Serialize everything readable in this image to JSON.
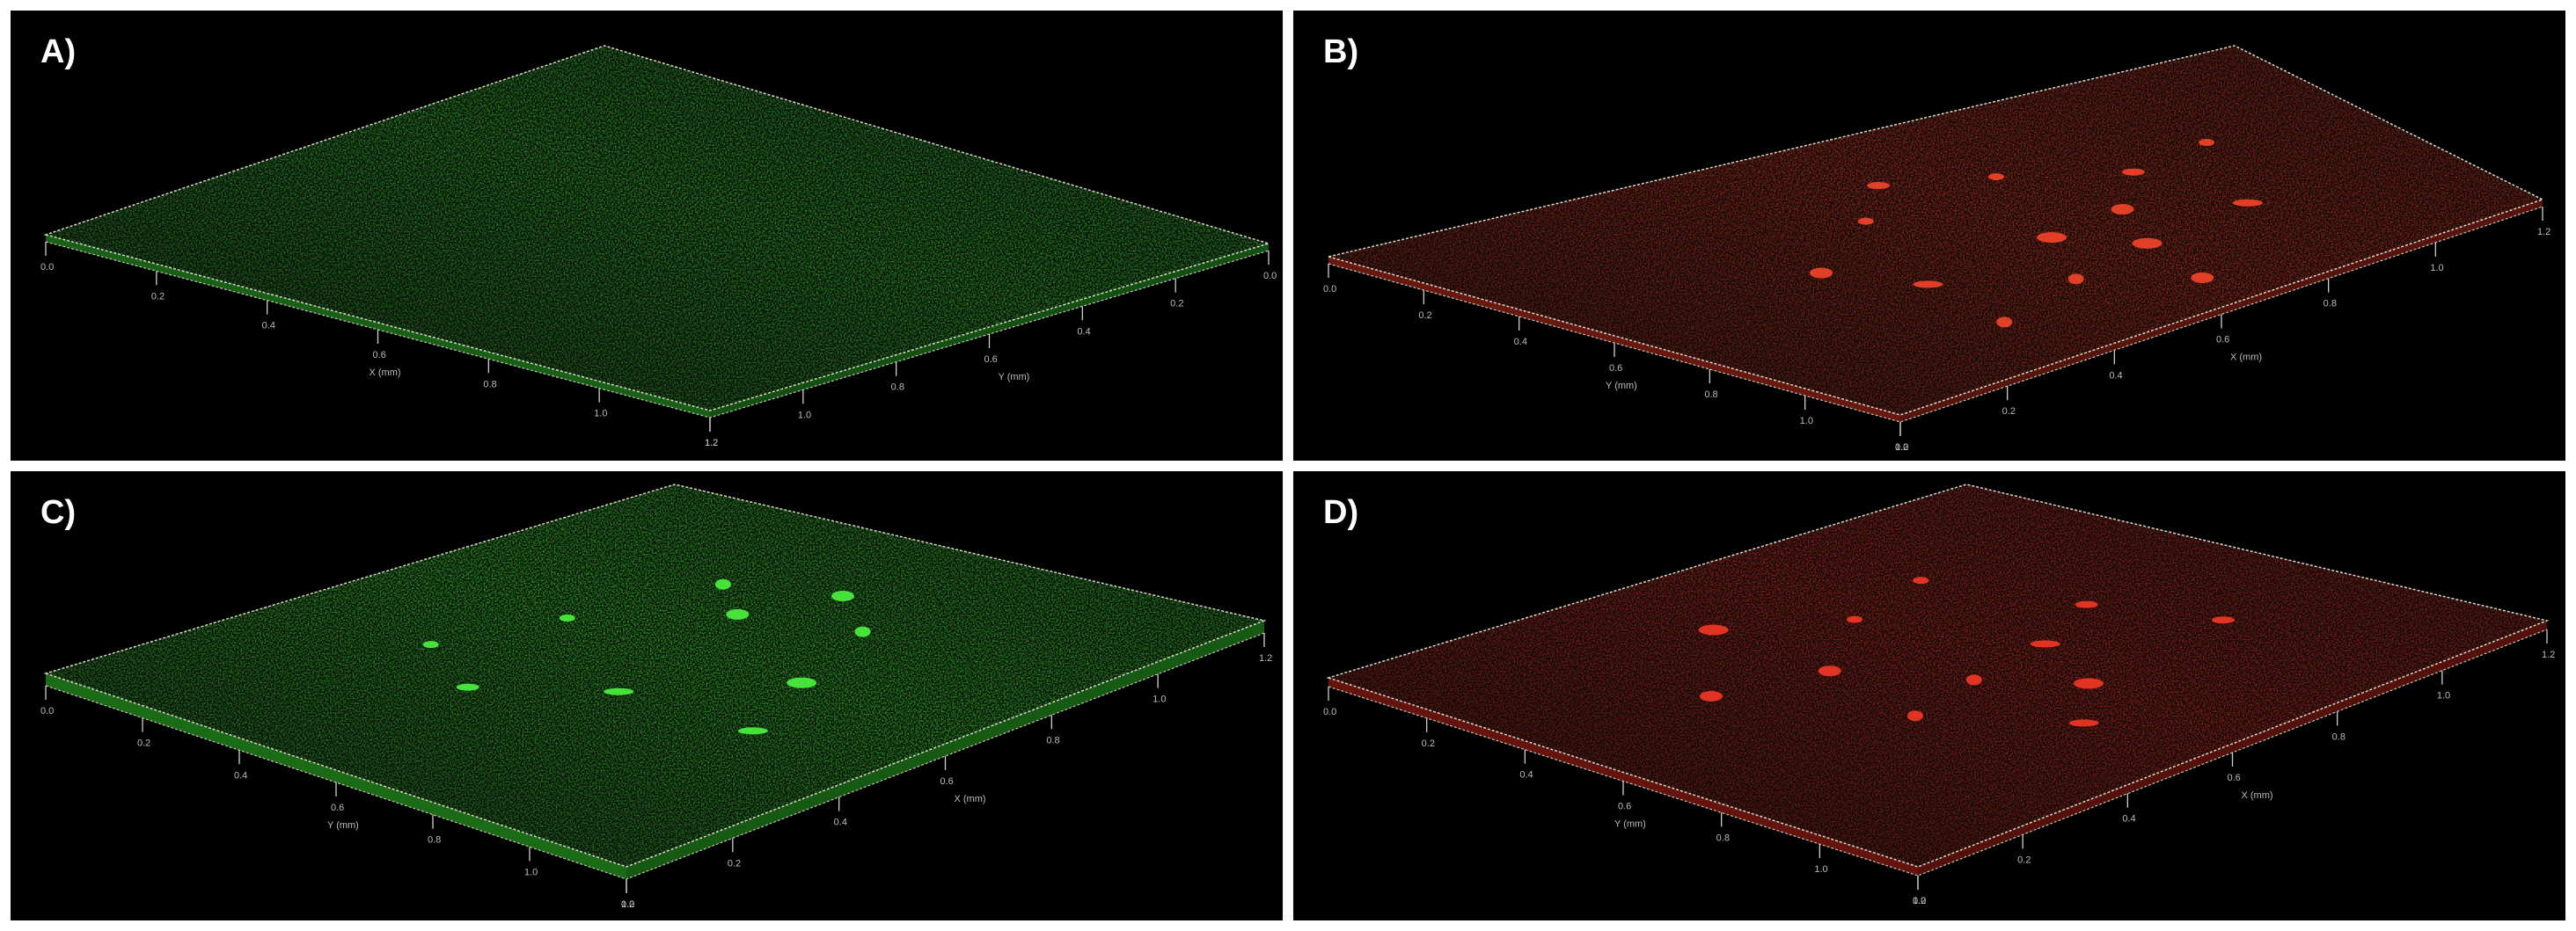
{
  "panels": [
    {
      "id": "A",
      "label": "A)",
      "color": "#2fbf2a",
      "ticks_left": [
        "0.0",
        "0.2",
        "0.4",
        "0.6",
        "0.8",
        "1.0",
        "1.2"
      ],
      "axis_left_label": "X (mm)",
      "ticks_right": [
        "1.2",
        "1.0",
        "0.8",
        "0.6",
        "0.4",
        "0.2",
        "0.0"
      ],
      "axis_right_label": "Y (mm)"
    },
    {
      "id": "B",
      "label": "B)",
      "color": "#d0301c",
      "ticks_left": [
        "0.0",
        "0.2",
        "0.4",
        "0.6",
        "0.8",
        "1.0",
        "1.2"
      ],
      "axis_left_label": "Y (mm)",
      "ticks_right": [
        "0.0",
        "0.2",
        "0.4",
        "0.6",
        "0.8",
        "1.0",
        "1.2"
      ],
      "axis_right_label": "X (mm)"
    },
    {
      "id": "C",
      "label": "C)",
      "color": "#35d42c",
      "ticks_left": [
        "0.0",
        "0.2",
        "0.4",
        "0.6",
        "0.8",
        "1.0",
        "1.2"
      ],
      "axis_left_label": "Y (mm)",
      "ticks_right": [
        "0.0",
        "0.2",
        "0.4",
        "0.6",
        "0.8",
        "1.0",
        "1.2"
      ],
      "axis_right_label": "X (mm)"
    },
    {
      "id": "D",
      "label": "D)",
      "color": "#c8261a",
      "ticks_left": [
        "0.0",
        "0.2",
        "0.4",
        "0.6",
        "0.8",
        "1.0",
        "1.2"
      ],
      "axis_left_label": "Y (mm)",
      "ticks_right": [
        "0.0",
        "0.2",
        "0.4",
        "0.6",
        "0.8",
        "1.0",
        "1.2"
      ],
      "axis_right_label": "X (mm)"
    }
  ]
}
